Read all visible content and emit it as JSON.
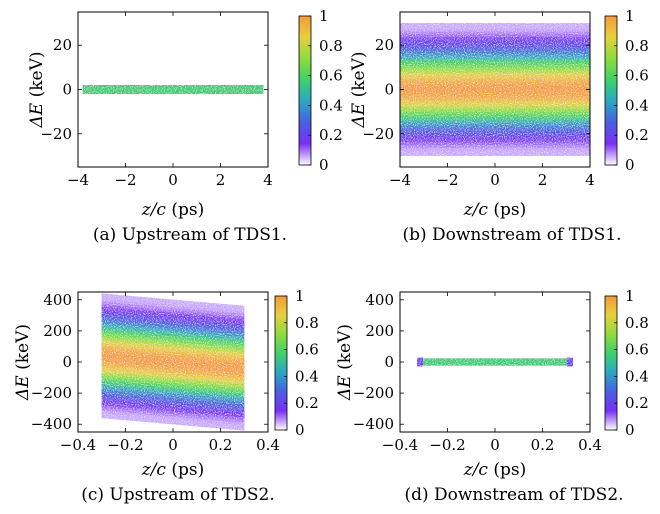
{
  "figure": {
    "colormap": [
      "#ffffff",
      "#7b2ff7",
      "#4a5fe0",
      "#2aa8c4",
      "#3fd16a",
      "#8ddc3c",
      "#e6d03c",
      "#f39a3b"
    ],
    "colorbar_ticks": [
      "0",
      "0.2",
      "0.4",
      "0.6",
      "0.8",
      "1"
    ]
  },
  "chart_data": [
    {
      "type": "heatmap",
      "caption": "(a) Upstream of TDS1.",
      "xlabel_var": "z/c",
      "xlabel_unit": "(ps)",
      "ylabel_var": "ΔE",
      "ylabel_unit": "(keV)",
      "xlim": [
        -4,
        4
      ],
      "ylim": [
        -35,
        35
      ],
      "xticks": [
        -4,
        -2,
        0,
        2,
        4
      ],
      "xtick_labels": [
        "−4",
        "−2",
        "0",
        "2",
        "4"
      ],
      "yticks": [
        -20,
        0,
        20
      ],
      "ytick_labels": [
        "−20",
        "0",
        "20"
      ],
      "colorbar": [
        0,
        1
      ],
      "distribution": {
        "z_range": [
          -3.8,
          3.8
        ],
        "energy_spread": 2,
        "chirp_slope": 0,
        "peak_level": 0.55,
        "style": "uniform-band"
      }
    },
    {
      "type": "heatmap",
      "caption": "(b) Downstream of TDS1.",
      "xlabel_var": "z/c",
      "xlabel_unit": "(ps)",
      "ylabel_var": "ΔE",
      "ylabel_unit": "(keV)",
      "xlim": [
        -4,
        4
      ],
      "ylim": [
        -35,
        35
      ],
      "xticks": [
        -4,
        -2,
        0,
        2,
        4
      ],
      "xtick_labels": [
        "−4",
        "−2",
        "0",
        "2",
        "4"
      ],
      "yticks": [
        -20,
        0,
        20
      ],
      "ytick_labels": [
        "−20",
        "0",
        "20"
      ],
      "colorbar": [
        0,
        1
      ],
      "distribution": {
        "z_range": [
          -4,
          4
        ],
        "energy_spread": 30,
        "chirp_slope": 0,
        "peak_level": 1,
        "style": "gaussian-band"
      }
    },
    {
      "type": "heatmap",
      "caption": "(c) Upstream of TDS2.",
      "xlabel_var": "z/c",
      "xlabel_unit": "(ps)",
      "ylabel_var": "ΔE",
      "ylabel_unit": "(keV)",
      "xlim": [
        -0.4,
        0.4
      ],
      "ylim": [
        -450,
        450
      ],
      "xticks": [
        -0.4,
        -0.2,
        0,
        0.2,
        0.4
      ],
      "xtick_labels": [
        "−0.4",
        "−0.2",
        "0",
        "0.2",
        "0.4"
      ],
      "yticks": [
        -400,
        -200,
        0,
        200,
        400
      ],
      "ytick_labels": [
        "−400",
        "−200",
        "0",
        "200",
        "400"
      ],
      "colorbar": [
        0,
        1
      ],
      "distribution": {
        "z_range": [
          -0.3,
          0.3
        ],
        "energy_spread": 400,
        "chirp_slope": -133,
        "peak_level": 1,
        "style": "gaussian-band"
      }
    },
    {
      "type": "heatmap",
      "caption": "(d) Downstream of TDS2.",
      "xlabel_var": "z/c",
      "xlabel_unit": "(ps)",
      "ylabel_var": "ΔE",
      "ylabel_unit": "(keV)",
      "xlim": [
        -0.4,
        0.4
      ],
      "ylim": [
        -450,
        450
      ],
      "xticks": [
        -0.4,
        -0.2,
        0,
        0.2,
        0.4
      ],
      "xtick_labels": [
        "−0.4",
        "−0.2",
        "0",
        "0.2",
        "0.4"
      ],
      "yticks": [
        -400,
        -200,
        0,
        200,
        400
      ],
      "ytick_labels": [
        "−400",
        "−200",
        "0",
        "200",
        "400"
      ],
      "colorbar": [
        0,
        1
      ],
      "distribution": {
        "z_range": [
          -0.32,
          0.32
        ],
        "energy_spread": 22,
        "chirp_slope": 0,
        "peak_level": 0.55,
        "style": "thin-band"
      }
    }
  ]
}
